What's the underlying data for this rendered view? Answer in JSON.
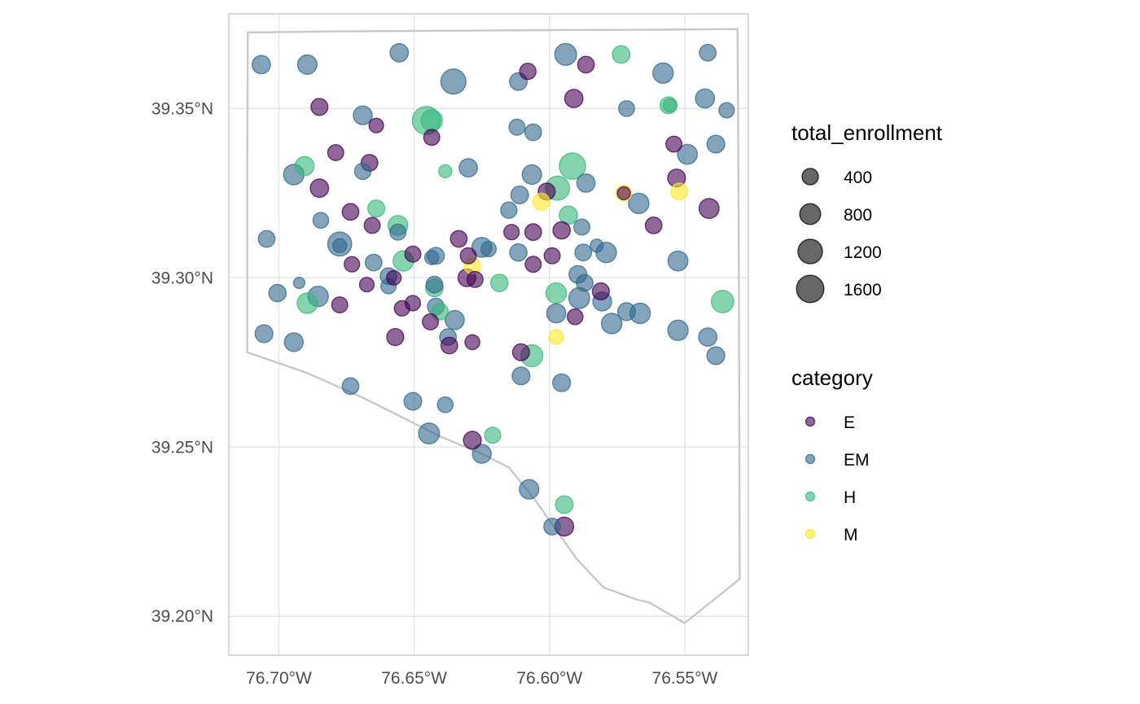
{
  "chart_data": {
    "type": "scatter",
    "title": "",
    "xlabel": "",
    "ylabel": "",
    "xlim": [
      -76.7185,
      -76.5265
    ],
    "ylim": [
      39.1885,
      39.378
    ],
    "x_ticks": [
      -76.7,
      -76.65,
      -76.6,
      -76.55
    ],
    "x_tick_labels": [
      "76.70°W",
      "76.65°W",
      "76.60°W",
      "76.55°W"
    ],
    "y_ticks": [
      39.2,
      39.25,
      39.3,
      39.35
    ],
    "y_tick_labels": [
      "39.20°N",
      "39.25°N",
      "39.30°N",
      "39.35°N"
    ],
    "grid": true,
    "boundary": [
      [
        -76.7115,
        39.3725
      ],
      [
        -76.68,
        39.3728
      ],
      [
        -76.64,
        39.373
      ],
      [
        -76.6,
        39.3732
      ],
      [
        -76.56,
        39.3733
      ],
      [
        -76.5305,
        39.3735
      ],
      [
        -76.5303,
        39.35
      ],
      [
        -76.53,
        39.3
      ],
      [
        -76.5298,
        39.25
      ],
      [
        -76.5297,
        39.211
      ],
      [
        -76.55,
        39.198
      ],
      [
        -76.563,
        39.204
      ],
      [
        -76.568,
        39.205
      ],
      [
        -76.58,
        39.2085
      ],
      [
        -76.59,
        39.217
      ],
      [
        -76.605,
        39.234
      ],
      [
        -76.615,
        39.244
      ],
      [
        -76.625,
        39.248
      ],
      [
        -76.64,
        39.253
      ],
      [
        -76.655,
        39.259
      ],
      [
        -76.67,
        39.265
      ],
      [
        -76.69,
        39.272
      ],
      [
        -76.7117,
        39.278
      ],
      [
        -76.7117,
        39.33
      ],
      [
        -76.7115,
        39.3725
      ]
    ],
    "colors": {
      "E": "#440154",
      "EM": "#31688e",
      "H": "#35b779",
      "M": "#fde725"
    },
    "legend_size": {
      "title": "total_enrollment",
      "values": [
        400,
        800,
        1200,
        1600
      ],
      "labels": [
        "400",
        "800",
        "1200",
        "1600"
      ]
    },
    "legend_color": {
      "title": "category",
      "labels": [
        "E",
        "EM",
        "H",
        "M"
      ]
    },
    "points": [
      {
        "x": -76.7065,
        "y": 39.363,
        "cat": "EM",
        "n": 550
      },
      {
        "x": -76.6895,
        "y": 39.363,
        "cat": "EM",
        "n": 650
      },
      {
        "x": -76.6555,
        "y": 39.3665,
        "cat": "EM",
        "n": 550
      },
      {
        "x": -76.6355,
        "y": 39.358,
        "cat": "EM",
        "n": 1300
      },
      {
        "x": -76.608,
        "y": 39.361,
        "cat": "E",
        "n": 400
      },
      {
        "x": -76.6115,
        "y": 39.358,
        "cat": "EM",
        "n": 500
      },
      {
        "x": -76.594,
        "y": 39.366,
        "cat": "EM",
        "n": 900
      },
      {
        "x": -76.5865,
        "y": 39.363,
        "cat": "E",
        "n": 420
      },
      {
        "x": -76.5735,
        "y": 39.366,
        "cat": "H",
        "n": 500
      },
      {
        "x": -76.558,
        "y": 39.3605,
        "cat": "EM",
        "n": 750
      },
      {
        "x": -76.5415,
        "y": 39.3665,
        "cat": "EM",
        "n": 420
      },
      {
        "x": -76.685,
        "y": 39.3505,
        "cat": "E",
        "n": 450
      },
      {
        "x": -76.669,
        "y": 39.348,
        "cat": "EM",
        "n": 600
      },
      {
        "x": -76.664,
        "y": 39.345,
        "cat": "E",
        "n": 280
      },
      {
        "x": -76.6455,
        "y": 39.3465,
        "cat": "H",
        "n": 1700
      },
      {
        "x": -76.6435,
        "y": 39.3465,
        "cat": "H",
        "n": 850
      },
      {
        "x": -76.6435,
        "y": 39.3415,
        "cat": "E",
        "n": 380
      },
      {
        "x": -76.612,
        "y": 39.3445,
        "cat": "EM",
        "n": 380
      },
      {
        "x": -76.606,
        "y": 39.343,
        "cat": "EM",
        "n": 430
      },
      {
        "x": -76.591,
        "y": 39.353,
        "cat": "E",
        "n": 550
      },
      {
        "x": -76.5715,
        "y": 39.35,
        "cat": "EM",
        "n": 370
      },
      {
        "x": -76.556,
        "y": 39.351,
        "cat": "H",
        "n": 450
      },
      {
        "x": -76.5555,
        "y": 39.351,
        "cat": "H",
        "n": 220
      },
      {
        "x": -76.5425,
        "y": 39.353,
        "cat": "EM",
        "n": 620
      },
      {
        "x": -76.5345,
        "y": 39.3495,
        "cat": "EM",
        "n": 330
      },
      {
        "x": -76.679,
        "y": 39.337,
        "cat": "E",
        "n": 380
      },
      {
        "x": -76.6665,
        "y": 39.334,
        "cat": "E",
        "n": 420
      },
      {
        "x": -76.669,
        "y": 39.3315,
        "cat": "EM",
        "n": 400
      },
      {
        "x": -76.6905,
        "y": 39.333,
        "cat": "H",
        "n": 620
      },
      {
        "x": -76.6945,
        "y": 39.3305,
        "cat": "EM",
        "n": 750
      },
      {
        "x": -76.685,
        "y": 39.3265,
        "cat": "E",
        "n": 560
      },
      {
        "x": -76.6385,
        "y": 39.3315,
        "cat": "H",
        "n": 200
      },
      {
        "x": -76.63,
        "y": 39.3325,
        "cat": "EM",
        "n": 550
      },
      {
        "x": -76.6065,
        "y": 39.3305,
        "cat": "EM",
        "n": 650
      },
      {
        "x": -76.5915,
        "y": 39.333,
        "cat": "H",
        "n": 1450
      },
      {
        "x": -76.597,
        "y": 39.3265,
        "cat": "H",
        "n": 1150
      },
      {
        "x": -76.601,
        "y": 39.3255,
        "cat": "E",
        "n": 450
      },
      {
        "x": -76.5865,
        "y": 39.328,
        "cat": "EM",
        "n": 560
      },
      {
        "x": -76.611,
        "y": 39.3245,
        "cat": "EM",
        "n": 500
      },
      {
        "x": -76.603,
        "y": 39.3225,
        "cat": "M",
        "n": 450
      },
      {
        "x": -76.5725,
        "y": 39.325,
        "cat": "M",
        "n": 350
      },
      {
        "x": -76.5725,
        "y": 39.325,
        "cat": "E",
        "n": 200
      },
      {
        "x": -76.567,
        "y": 39.322,
        "cat": "EM",
        "n": 750
      },
      {
        "x": -76.554,
        "y": 39.3395,
        "cat": "E",
        "n": 380
      },
      {
        "x": -76.549,
        "y": 39.3365,
        "cat": "EM",
        "n": 700
      },
      {
        "x": -76.5385,
        "y": 39.3395,
        "cat": "EM",
        "n": 520
      },
      {
        "x": -76.553,
        "y": 39.3295,
        "cat": "E",
        "n": 520
      },
      {
        "x": -76.552,
        "y": 39.3255,
        "cat": "M",
        "n": 420
      },
      {
        "x": -76.541,
        "y": 39.3205,
        "cat": "E",
        "n": 700
      },
      {
        "x": -76.5615,
        "y": 39.3155,
        "cat": "E",
        "n": 420
      },
      {
        "x": -76.7045,
        "y": 39.3115,
        "cat": "EM",
        "n": 430
      },
      {
        "x": -76.6845,
        "y": 39.317,
        "cat": "EM",
        "n": 350
      },
      {
        "x": -76.6775,
        "y": 39.31,
        "cat": "EM",
        "n": 1150
      },
      {
        "x": -76.6775,
        "y": 39.3095,
        "cat": "EM",
        "n": 250
      },
      {
        "x": -76.6735,
        "y": 39.3195,
        "cat": "E",
        "n": 420
      },
      {
        "x": -76.6655,
        "y": 39.3155,
        "cat": "E",
        "n": 380
      },
      {
        "x": -76.664,
        "y": 39.3205,
        "cat": "H",
        "n": 450
      },
      {
        "x": -76.656,
        "y": 39.3155,
        "cat": "H",
        "n": 680
      },
      {
        "x": -76.656,
        "y": 39.3135,
        "cat": "EM",
        "n": 380
      },
      {
        "x": -76.654,
        "y": 39.305,
        "cat": "H",
        "n": 750
      },
      {
        "x": -76.6505,
        "y": 39.307,
        "cat": "E",
        "n": 380
      },
      {
        "x": -76.642,
        "y": 39.3065,
        "cat": "EM",
        "n": 450
      },
      {
        "x": -76.6435,
        "y": 39.306,
        "cat": "EM",
        "n": 250
      },
      {
        "x": -76.665,
        "y": 39.3045,
        "cat": "EM",
        "n": 420
      },
      {
        "x": -76.673,
        "y": 39.304,
        "cat": "E",
        "n": 330
      },
      {
        "x": -76.6675,
        "y": 39.298,
        "cat": "E",
        "n": 280
      },
      {
        "x": -76.6595,
        "y": 39.3005,
        "cat": "EM",
        "n": 420
      },
      {
        "x": -76.6575,
        "y": 39.3,
        "cat": "E",
        "n": 280
      },
      {
        "x": -76.6595,
        "y": 39.2975,
        "cat": "EM",
        "n": 320
      },
      {
        "x": -76.6545,
        "y": 39.291,
        "cat": "E",
        "n": 330
      },
      {
        "x": -76.6505,
        "y": 39.2925,
        "cat": "E",
        "n": 330
      },
      {
        "x": -76.6425,
        "y": 39.298,
        "cat": "EM",
        "n": 420
      },
      {
        "x": -76.6425,
        "y": 39.297,
        "cat": "H",
        "n": 500
      },
      {
        "x": -76.642,
        "y": 39.2915,
        "cat": "EM",
        "n": 420
      },
      {
        "x": -76.6405,
        "y": 39.29,
        "cat": "H",
        "n": 420
      },
      {
        "x": -76.6335,
        "y": 39.3115,
        "cat": "E",
        "n": 420
      },
      {
        "x": -76.63,
        "y": 39.3065,
        "cat": "E",
        "n": 380
      },
      {
        "x": -76.625,
        "y": 39.309,
        "cat": "EM",
        "n": 700
      },
      {
        "x": -76.6225,
        "y": 39.3085,
        "cat": "EM",
        "n": 330
      },
      {
        "x": -76.615,
        "y": 39.32,
        "cat": "EM",
        "n": 400
      },
      {
        "x": -76.614,
        "y": 39.3135,
        "cat": "E",
        "n": 330
      },
      {
        "x": -76.6115,
        "y": 39.3075,
        "cat": "EM",
        "n": 480
      },
      {
        "x": -76.606,
        "y": 39.3135,
        "cat": "E",
        "n": 420
      },
      {
        "x": -76.606,
        "y": 39.304,
        "cat": "E",
        "n": 380
      },
      {
        "x": -76.6305,
        "y": 39.3,
        "cat": "E",
        "n": 520
      },
      {
        "x": -76.6285,
        "y": 39.3035,
        "cat": "M",
        "n": 400
      },
      {
        "x": -76.6275,
        "y": 39.2995,
        "cat": "E",
        "n": 380
      },
      {
        "x": -76.6185,
        "y": 39.2985,
        "cat": "H",
        "n": 480
      },
      {
        "x": -76.599,
        "y": 39.3065,
        "cat": "E",
        "n": 380
      },
      {
        "x": -76.5955,
        "y": 39.314,
        "cat": "E",
        "n": 480
      },
      {
        "x": -76.593,
        "y": 39.3185,
        "cat": "H",
        "n": 550
      },
      {
        "x": -76.588,
        "y": 39.315,
        "cat": "EM",
        "n": 380
      },
      {
        "x": -76.5875,
        "y": 39.3075,
        "cat": "EM",
        "n": 420
      },
      {
        "x": -76.579,
        "y": 39.3075,
        "cat": "EM",
        "n": 750
      },
      {
        "x": -76.5825,
        "y": 39.3095,
        "cat": "EM",
        "n": 200
      },
      {
        "x": -76.5895,
        "y": 39.301,
        "cat": "EM",
        "n": 520
      },
      {
        "x": -76.587,
        "y": 39.2985,
        "cat": "EM",
        "n": 420
      },
      {
        "x": -76.581,
        "y": 39.296,
        "cat": "E",
        "n": 450
      },
      {
        "x": -76.5975,
        "y": 39.2955,
        "cat": "H",
        "n": 750
      },
      {
        "x": -76.589,
        "y": 39.294,
        "cat": "EM",
        "n": 800
      },
      {
        "x": -76.5805,
        "y": 39.293,
        "cat": "EM",
        "n": 600
      },
      {
        "x": -76.5975,
        "y": 39.2895,
        "cat": "EM",
        "n": 620
      },
      {
        "x": -76.5905,
        "y": 39.2885,
        "cat": "E",
        "n": 350
      },
      {
        "x": -76.5715,
        "y": 39.29,
        "cat": "EM",
        "n": 520
      },
      {
        "x": -76.5665,
        "y": 39.2895,
        "cat": "EM",
        "n": 750
      },
      {
        "x": -76.577,
        "y": 39.2865,
        "cat": "EM",
        "n": 750
      },
      {
        "x": -76.5525,
        "y": 39.305,
        "cat": "EM",
        "n": 700
      },
      {
        "x": -76.536,
        "y": 39.293,
        "cat": "H",
        "n": 950
      },
      {
        "x": -76.5525,
        "y": 39.2845,
        "cat": "EM",
        "n": 750
      },
      {
        "x": -76.5415,
        "y": 39.2825,
        "cat": "EM",
        "n": 550
      },
      {
        "x": -76.5385,
        "y": 39.277,
        "cat": "EM",
        "n": 520
      },
      {
        "x": -76.6925,
        "y": 39.2985,
        "cat": "EM",
        "n": 120
      },
      {
        "x": -76.7005,
        "y": 39.2955,
        "cat": "EM",
        "n": 480
      },
      {
        "x": -76.6855,
        "y": 39.2945,
        "cat": "EM",
        "n": 750
      },
      {
        "x": -76.6895,
        "y": 39.2925,
        "cat": "H",
        "n": 750
      },
      {
        "x": -76.6775,
        "y": 39.292,
        "cat": "E",
        "n": 380
      },
      {
        "x": -76.7055,
        "y": 39.2835,
        "cat": "EM",
        "n": 520
      },
      {
        "x": -76.6945,
        "y": 39.281,
        "cat": "EM",
        "n": 600
      },
      {
        "x": -76.657,
        "y": 39.2825,
        "cat": "E",
        "n": 450
      },
      {
        "x": -76.644,
        "y": 39.287,
        "cat": "E",
        "n": 380
      },
      {
        "x": -76.635,
        "y": 39.2875,
        "cat": "EM",
        "n": 620
      },
      {
        "x": -76.6375,
        "y": 39.2825,
        "cat": "EM",
        "n": 420
      },
      {
        "x": -76.637,
        "y": 39.28,
        "cat": "E",
        "n": 420
      },
      {
        "x": -76.6285,
        "y": 39.281,
        "cat": "E",
        "n": 300
      },
      {
        "x": -76.6105,
        "y": 39.278,
        "cat": "E",
        "n": 450
      },
      {
        "x": -76.6065,
        "y": 39.277,
        "cat": "H",
        "n": 900
      },
      {
        "x": -76.6105,
        "y": 39.271,
        "cat": "EM",
        "n": 520
      },
      {
        "x": -76.5975,
        "y": 39.2825,
        "cat": "M",
        "n": 280
      },
      {
        "x": -76.5955,
        "y": 39.269,
        "cat": "EM",
        "n": 520
      },
      {
        "x": -76.6735,
        "y": 39.268,
        "cat": "EM",
        "n": 430
      },
      {
        "x": -76.6505,
        "y": 39.2635,
        "cat": "EM",
        "n": 500
      },
      {
        "x": -76.6385,
        "y": 39.2625,
        "cat": "EM",
        "n": 350
      },
      {
        "x": -76.6445,
        "y": 39.254,
        "cat": "EM",
        "n": 800
      },
      {
        "x": -76.6285,
        "y": 39.252,
        "cat": "E",
        "n": 520
      },
      {
        "x": -76.621,
        "y": 39.2535,
        "cat": "H",
        "n": 380
      },
      {
        "x": -76.625,
        "y": 39.248,
        "cat": "EM",
        "n": 600
      },
      {
        "x": -76.6075,
        "y": 39.2375,
        "cat": "EM",
        "n": 650
      },
      {
        "x": -76.5945,
        "y": 39.233,
        "cat": "H",
        "n": 500
      },
      {
        "x": -76.599,
        "y": 39.2265,
        "cat": "EM",
        "n": 420
      },
      {
        "x": -76.5945,
        "y": 39.2265,
        "cat": "E",
        "n": 600
      }
    ]
  }
}
